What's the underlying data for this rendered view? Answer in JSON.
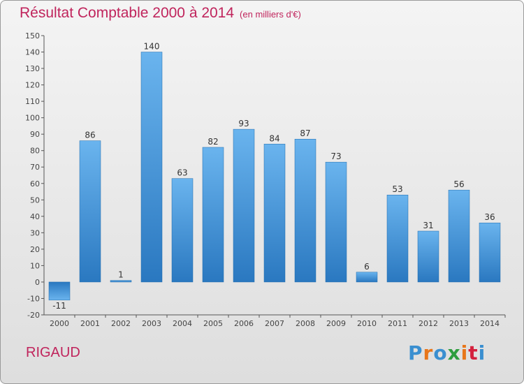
{
  "chart_data": {
    "type": "bar",
    "title": "Résultat Comptable 2000 à 2014",
    "subtitle": "(en milliers d'€)",
    "categories": [
      "2000",
      "2001",
      "2002",
      "2003",
      "2004",
      "2005",
      "2006",
      "2007",
      "2008",
      "2009",
      "2010",
      "2011",
      "2012",
      "2013",
      "2014"
    ],
    "values": [
      -11,
      86,
      1,
      140,
      63,
      82,
      93,
      84,
      87,
      73,
      6,
      53,
      31,
      56,
      36
    ],
    "value_labels": [
      "-11",
      "86",
      "1",
      "140",
      "63",
      "82",
      "93",
      "84",
      "87",
      "73",
      "6",
      "53",
      "31",
      "56",
      "36"
    ],
    "ylim": [
      -20,
      150
    ],
    "yticks": [
      -20,
      -10,
      0,
      10,
      20,
      30,
      40,
      50,
      60,
      70,
      80,
      90,
      100,
      110,
      120,
      130,
      140,
      150
    ],
    "xlabel": "",
    "ylabel": "",
    "grid": false
  },
  "commune": "RIGAUD",
  "logo": {
    "text": "Proxiti",
    "letter_colors": [
      "#3a8fd0",
      "#e8761a",
      "#3a8fd0",
      "#2e9e3e",
      "#e8761a",
      "#d4213d",
      "#3a8fd0"
    ]
  },
  "colors": {
    "title": "#c0245c",
    "bar_light": "#6ab4ee",
    "bar_dark": "#2a78c0",
    "axis": "#555555"
  }
}
